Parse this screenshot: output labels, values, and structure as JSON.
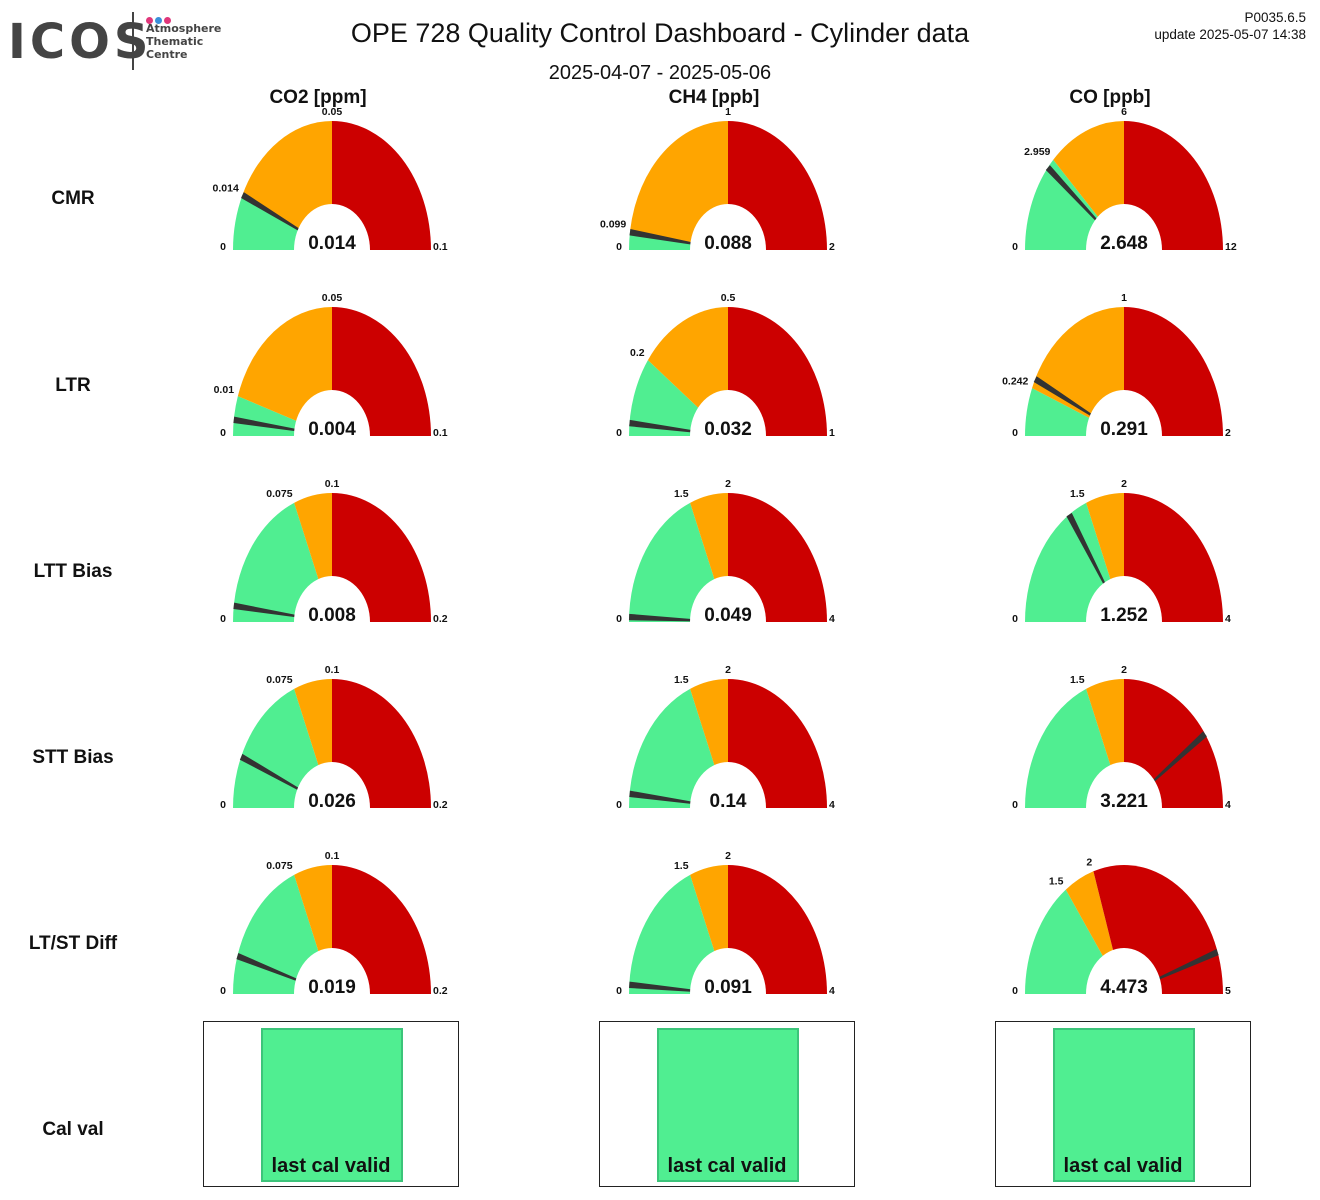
{
  "logo": {
    "text": "ICOS",
    "subtitle": "Atmosphere\nThematic\nCentre",
    "dot_colors": [
      "#e0367a",
      "#3a8fd9",
      "#e0367a"
    ]
  },
  "title": "OPE 728 Quality Control Dashboard - Cylinder data",
  "date_range": "2025-04-07 - 2025-05-06",
  "version": "P0035.6.5",
  "update": "update  2025-05-07 14:38",
  "colors": {
    "good": "#50ee91",
    "warn": "#ffa500",
    "bad": "#cc0000",
    "needle": "#333333"
  },
  "columns": [
    "CO2 [ppm]",
    "CH4 [ppb]",
    "CO [ppb]"
  ],
  "rows": [
    "CMR",
    "LTR",
    "LTT Bias",
    "STT Bias",
    "LT/ST Diff",
    "Cal val"
  ],
  "gauges": [
    [
      {
        "min": "0",
        "max": "0.1",
        "good": "0.014",
        "warn": "0.05",
        "value": "0.014"
      },
      {
        "min": "0",
        "max": "2",
        "good": "0.099",
        "warn": "1",
        "value": "0.088"
      },
      {
        "min": "0",
        "max": "12",
        "good": "2.959",
        "warn": "6",
        "value": "2.648"
      }
    ],
    [
      {
        "min": "0",
        "max": "0.1",
        "good": "0.01",
        "warn": "0.05",
        "value": "0.004"
      },
      {
        "min": "0",
        "max": "1",
        "good": "0.2",
        "warn": "0.5",
        "value": "0.032"
      },
      {
        "min": "0",
        "max": "2",
        "good": "0.242",
        "warn": "1",
        "value": "0.291"
      }
    ],
    [
      {
        "min": "0",
        "max": "0.2",
        "good": "0.075",
        "warn": "0.1",
        "value": "0.008"
      },
      {
        "min": "0",
        "max": "4",
        "good": "1.5",
        "warn": "2",
        "value": "0.049"
      },
      {
        "min": "0",
        "max": "4",
        "good": "1.5",
        "warn": "2",
        "value": "1.252"
      }
    ],
    [
      {
        "min": "0",
        "max": "0.2",
        "good": "0.075",
        "warn": "0.1",
        "value": "0.026"
      },
      {
        "min": "0",
        "max": "4",
        "good": "1.5",
        "warn": "2",
        "value": "0.14"
      },
      {
        "min": "0",
        "max": "4",
        "good": "1.5",
        "warn": "2",
        "value": "3.221"
      }
    ],
    [
      {
        "min": "0",
        "max": "0.2",
        "good": "0.075",
        "warn": "0.1",
        "value": "0.019"
      },
      {
        "min": "0",
        "max": "4",
        "good": "1.5",
        "warn": "2",
        "value": "0.091"
      },
      {
        "min": "0",
        "max": "5",
        "good": "1.5",
        "warn": "2",
        "value": "4.473"
      }
    ]
  ],
  "cal_val": [
    "last cal valid",
    "last cal valid",
    "last cal valid"
  ]
}
